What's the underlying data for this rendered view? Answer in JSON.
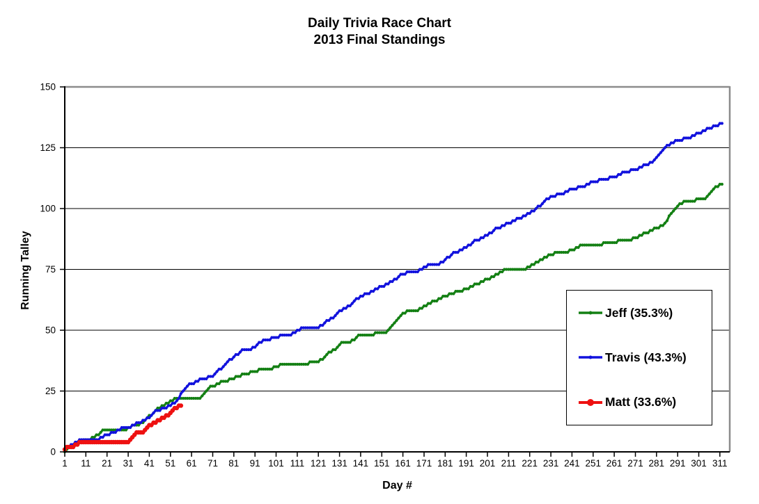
{
  "title": {
    "line1": "Daily Trivia Race Chart",
    "line2": "2013 Final Standings"
  },
  "axes": {
    "x_label": "Day #",
    "y_label": "Running Talley",
    "x_ticks": [
      1,
      11,
      21,
      31,
      41,
      51,
      61,
      71,
      81,
      91,
      101,
      111,
      121,
      131,
      141,
      151,
      161,
      171,
      181,
      191,
      201,
      211,
      221,
      231,
      241,
      251,
      261,
      271,
      281,
      291,
      301,
      311
    ],
    "y_ticks": [
      0,
      25,
      50,
      75,
      100,
      125,
      150
    ]
  },
  "colors": {
    "jeff_green": "#148014",
    "travis_blue": "#1212DD",
    "matt_red": "#EE1111",
    "gridline": "#000000",
    "plot_border": "#8C8C8C",
    "axis": "#000000",
    "background": "#FFFFFF",
    "text": "#000000"
  },
  "legend": {
    "entries": [
      {
        "label": "Jeff (35.3%)",
        "color": "#148014",
        "marker_radius": 2.5,
        "line_width": 3.5
      },
      {
        "label": "Travis (43.3%)",
        "color": "#1212DD",
        "marker_radius": 2.5,
        "line_width": 3.5
      },
      {
        "label": "Matt (33.6%)",
        "color": "#EE1111",
        "marker_radius": 5,
        "line_width": 4
      }
    ]
  },
  "chart_data": {
    "type": "line",
    "title": "Daily Trivia Race Chart",
    "subtitle": "2013 Final Standings",
    "xlabel": "Day #",
    "ylabel": "Running Talley",
    "xlim": [
      1,
      315
    ],
    "ylim": [
      0,
      150
    ],
    "grid": true,
    "gridlines_y_interval": 25,
    "legend_position": "right-middle",
    "note": "Running tally (cumulative correct answers) per day; values between anchors interpolate in whole-number daily steps.",
    "series": [
      {
        "id": "jeff",
        "name": "Jeff (35.3%)",
        "color": "#148014",
        "line_width": 3.2,
        "marker_radius": 2.1,
        "final_value": 110,
        "anchors": [
          [
            1,
            0
          ],
          [
            2,
            1
          ],
          [
            4,
            2
          ],
          [
            6,
            3
          ],
          [
            8,
            4
          ],
          [
            12,
            5
          ],
          [
            15,
            6
          ],
          [
            18,
            8
          ],
          [
            20,
            9
          ],
          [
            30,
            9
          ],
          [
            32,
            10
          ],
          [
            34,
            11
          ],
          [
            36,
            11
          ],
          [
            38,
            12
          ],
          [
            40,
            14
          ],
          [
            42,
            15
          ],
          [
            44,
            17
          ],
          [
            46,
            18
          ],
          [
            48,
            19
          ],
          [
            50,
            20
          ],
          [
            52,
            21
          ],
          [
            54,
            22
          ],
          [
            65,
            22
          ],
          [
            67,
            24
          ],
          [
            69,
            26
          ],
          [
            71,
            27
          ],
          [
            74,
            28
          ],
          [
            76,
            29
          ],
          [
            81,
            30
          ],
          [
            83,
            31
          ],
          [
            86,
            32
          ],
          [
            91,
            33
          ],
          [
            94,
            34
          ],
          [
            99,
            34
          ],
          [
            101,
            35
          ],
          [
            105,
            36
          ],
          [
            115,
            36
          ],
          [
            118,
            37
          ],
          [
            121,
            37
          ],
          [
            123,
            38
          ],
          [
            125,
            40
          ],
          [
            127,
            41
          ],
          [
            129,
            42
          ],
          [
            131,
            44
          ],
          [
            133,
            45
          ],
          [
            136,
            45
          ],
          [
            139,
            47
          ],
          [
            141,
            48
          ],
          [
            146,
            48
          ],
          [
            149,
            49
          ],
          [
            153,
            49
          ],
          [
            155,
            51
          ],
          [
            157,
            53
          ],
          [
            159,
            55
          ],
          [
            161,
            57
          ],
          [
            164,
            58
          ],
          [
            168,
            58
          ],
          [
            171,
            60
          ],
          [
            174,
            61
          ],
          [
            176,
            62
          ],
          [
            179,
            63
          ],
          [
            181,
            64
          ],
          [
            184,
            65
          ],
          [
            188,
            66
          ],
          [
            191,
            67
          ],
          [
            194,
            68
          ],
          [
            196,
            69
          ],
          [
            199,
            70
          ],
          [
            201,
            71
          ],
          [
            204,
            72
          ],
          [
            206,
            73
          ],
          [
            209,
            75
          ],
          [
            218,
            75
          ],
          [
            221,
            76
          ],
          [
            223,
            77
          ],
          [
            226,
            79
          ],
          [
            229,
            80
          ],
          [
            231,
            81
          ],
          [
            234,
            82
          ],
          [
            239,
            82
          ],
          [
            241,
            83
          ],
          [
            244,
            84
          ],
          [
            246,
            85
          ],
          [
            254,
            85
          ],
          [
            258,
            86
          ],
          [
            261,
            86
          ],
          [
            264,
            87
          ],
          [
            268,
            87
          ],
          [
            271,
            88
          ],
          [
            274,
            89
          ],
          [
            276,
            90
          ],
          [
            279,
            91
          ],
          [
            281,
            92
          ],
          [
            284,
            93
          ],
          [
            286,
            95
          ],
          [
            288,
            98
          ],
          [
            290,
            100
          ],
          [
            292,
            102
          ],
          [
            295,
            103
          ],
          [
            298,
            103
          ],
          [
            301,
            104
          ],
          [
            304,
            104
          ],
          [
            306,
            106
          ],
          [
            308,
            108
          ],
          [
            311,
            110
          ],
          [
            312,
            110
          ]
        ]
      },
      {
        "id": "travis",
        "name": "Travis (43.3%)",
        "color": "#1212DD",
        "line_width": 3.2,
        "marker_radius": 2.1,
        "final_value": 135,
        "anchors": [
          [
            1,
            1
          ],
          [
            3,
            2
          ],
          [
            5,
            3
          ],
          [
            7,
            4
          ],
          [
            9,
            5
          ],
          [
            16,
            5
          ],
          [
            19,
            6
          ],
          [
            21,
            7
          ],
          [
            24,
            8
          ],
          [
            27,
            9
          ],
          [
            29,
            10
          ],
          [
            31,
            10
          ],
          [
            34,
            11
          ],
          [
            36,
            12
          ],
          [
            39,
            13
          ],
          [
            41,
            14
          ],
          [
            43,
            16
          ],
          [
            45,
            17
          ],
          [
            49,
            18
          ],
          [
            51,
            19
          ],
          [
            53,
            20
          ],
          [
            55,
            22
          ],
          [
            57,
            25
          ],
          [
            59,
            27
          ],
          [
            61,
            28
          ],
          [
            64,
            29
          ],
          [
            66,
            30
          ],
          [
            71,
            31
          ],
          [
            73,
            33
          ],
          [
            76,
            35
          ],
          [
            78,
            37
          ],
          [
            81,
            39
          ],
          [
            84,
            41
          ],
          [
            86,
            42
          ],
          [
            89,
            42
          ],
          [
            91,
            43
          ],
          [
            93,
            45
          ],
          [
            96,
            46
          ],
          [
            101,
            47
          ],
          [
            104,
            48
          ],
          [
            108,
            48
          ],
          [
            111,
            50
          ],
          [
            114,
            51
          ],
          [
            121,
            51
          ],
          [
            124,
            53
          ],
          [
            126,
            54
          ],
          [
            129,
            56
          ],
          [
            131,
            58
          ],
          [
            134,
            59
          ],
          [
            137,
            61
          ],
          [
            141,
            64
          ],
          [
            144,
            65
          ],
          [
            147,
            66
          ],
          [
            151,
            68
          ],
          [
            154,
            69
          ],
          [
            156,
            70
          ],
          [
            159,
            72
          ],
          [
            161,
            73
          ],
          [
            164,
            74
          ],
          [
            168,
            74
          ],
          [
            171,
            76
          ],
          [
            174,
            77
          ],
          [
            178,
            77
          ],
          [
            181,
            79
          ],
          [
            184,
            81
          ],
          [
            186,
            82
          ],
          [
            189,
            83
          ],
          [
            191,
            84
          ],
          [
            194,
            86
          ],
          [
            196,
            87
          ],
          [
            199,
            88
          ],
          [
            201,
            89
          ],
          [
            204,
            91
          ],
          [
            206,
            92
          ],
          [
            209,
            93
          ],
          [
            211,
            94
          ],
          [
            214,
            95
          ],
          [
            216,
            96
          ],
          [
            219,
            97
          ],
          [
            221,
            98
          ],
          [
            224,
            100
          ],
          [
            226,
            101
          ],
          [
            228,
            103
          ],
          [
            231,
            105
          ],
          [
            236,
            106
          ],
          [
            239,
            107
          ],
          [
            241,
            108
          ],
          [
            246,
            109
          ],
          [
            249,
            110
          ],
          [
            251,
            111
          ],
          [
            256,
            112
          ],
          [
            261,
            113
          ],
          [
            264,
            114
          ],
          [
            266,
            115
          ],
          [
            271,
            116
          ],
          [
            274,
            117
          ],
          [
            276,
            118
          ],
          [
            279,
            119
          ],
          [
            281,
            121
          ],
          [
            283,
            123
          ],
          [
            285,
            125
          ],
          [
            288,
            127
          ],
          [
            291,
            128
          ],
          [
            296,
            129
          ],
          [
            299,
            130
          ],
          [
            301,
            131
          ],
          [
            304,
            132
          ],
          [
            306,
            133
          ],
          [
            309,
            134
          ],
          [
            312,
            135
          ]
        ]
      },
      {
        "id": "matt",
        "name": "Matt (33.6%)",
        "color": "#EE1111",
        "line_width": 4.5,
        "marker_radius": 3.2,
        "final_value": 19,
        "anchors": [
          [
            1,
            1
          ],
          [
            2,
            2
          ],
          [
            5,
            2
          ],
          [
            7,
            3
          ],
          [
            9,
            4
          ],
          [
            13,
            4
          ],
          [
            31,
            4
          ],
          [
            33,
            6
          ],
          [
            35,
            8
          ],
          [
            38,
            8
          ],
          [
            40,
            10
          ],
          [
            42,
            11
          ],
          [
            44,
            12
          ],
          [
            46,
            13
          ],
          [
            48,
            14
          ],
          [
            50,
            15
          ],
          [
            52,
            17
          ],
          [
            54,
            18
          ],
          [
            56,
            19
          ]
        ]
      }
    ]
  }
}
